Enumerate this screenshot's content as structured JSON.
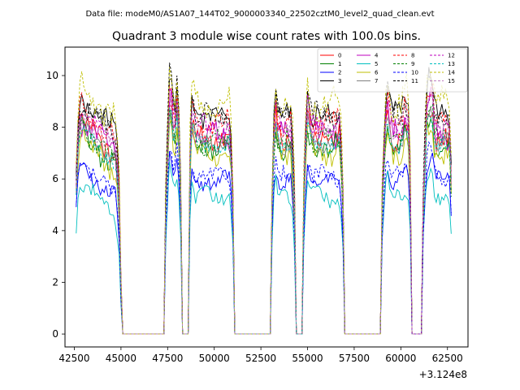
{
  "header": {
    "suptitle": "Data file: modeM0/AS1A07_144T02_9000003340_22502cztM0_level2_quad_clean.evt"
  },
  "chart_data": {
    "type": "line",
    "title": "Quadrant 3 module wise count rates with 100.0s bins.",
    "xlabel": "",
    "ylabel": "",
    "x_offset_text": "+3.124e8",
    "xlim": [
      42000,
      63600
    ],
    "ylim": [
      -0.5,
      11.1
    ],
    "xticks": [
      42500,
      45000,
      47500,
      50000,
      52500,
      55000,
      57500,
      60000,
      62500
    ],
    "yticks": [
      0,
      2,
      4,
      6,
      8,
      10
    ],
    "legend_loc": "upper right",
    "legend_columns": 4,
    "gti_segments": [
      [
        42600,
        45050
      ],
      [
        47400,
        48200
      ],
      [
        48700,
        51000
      ],
      [
        53100,
        54300
      ],
      [
        54800,
        56900
      ],
      [
        59000,
        60550
      ],
      [
        61200,
        62750
      ]
    ],
    "series": [
      {
        "name": "0",
        "color": "#ff0000",
        "style": "solid",
        "level": 7.6,
        "amp": 0.4
      },
      {
        "name": "1",
        "color": "#008000",
        "style": "solid",
        "level": 7.2,
        "amp": 0.4
      },
      {
        "name": "2",
        "color": "#0000ff",
        "style": "solid",
        "level": 5.9,
        "amp": 0.3
      },
      {
        "name": "3",
        "color": "#000000",
        "style": "solid",
        "level": 8.5,
        "amp": 0.4
      },
      {
        "name": "4",
        "color": "#bf00bf",
        "style": "solid",
        "level": 7.7,
        "amp": 0.4
      },
      {
        "name": "5",
        "color": "#00bfbf",
        "style": "solid",
        "level": 5.3,
        "amp": 0.3
      },
      {
        "name": "6",
        "color": "#bfbf00",
        "style": "solid",
        "level": 7.0,
        "amp": 0.4
      },
      {
        "name": "7",
        "color": "#808080",
        "style": "solid",
        "level": 7.4,
        "amp": 0.3
      },
      {
        "name": "8",
        "color": "#ff0000",
        "style": "dashed",
        "level": 8.2,
        "amp": 0.4
      },
      {
        "name": "9",
        "color": "#008000",
        "style": "dashed",
        "level": 7.5,
        "amp": 0.4
      },
      {
        "name": "10",
        "color": "#0000ff",
        "style": "dashed",
        "level": 6.1,
        "amp": 0.3
      },
      {
        "name": "11",
        "color": "#000000",
        "style": "dashed",
        "level": 8.4,
        "amp": 0.4
      },
      {
        "name": "12",
        "color": "#bf00bf",
        "style": "dashed",
        "level": 8.0,
        "amp": 0.4
      },
      {
        "name": "13",
        "color": "#00bfbf",
        "style": "dashed",
        "level": 7.3,
        "amp": 0.3
      },
      {
        "name": "14",
        "color": "#bfbf00",
        "style": "dashed",
        "level": 8.9,
        "amp": 0.5
      },
      {
        "name": "15",
        "color": "#bf7fbf",
        "style": "dashed",
        "level": 7.8,
        "amp": 0.4
      }
    ]
  }
}
